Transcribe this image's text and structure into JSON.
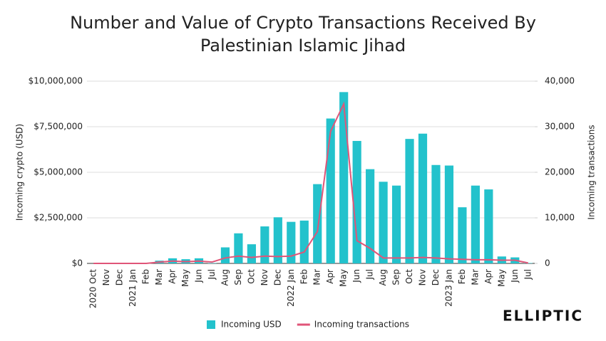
{
  "chart_data": {
    "type": "bar-line",
    "title": "Number and Value of Crypto Transactions Received By Palestinian Islamic Jihad",
    "y_label": "Incoming crypto (USD)",
    "y2_label": "Incoming transactions",
    "categories": [
      "2020 Oct",
      "Nov",
      "Dec",
      "2021 Jan",
      "Feb",
      "Mar",
      "Apr",
      "May",
      "Jun",
      "Jul",
      "Aug",
      "Sep",
      "Oct",
      "Nov",
      "Dec",
      "2022 Jan",
      "Feb",
      "Mar",
      "Apr",
      "May",
      "Jun",
      "Jul",
      "Aug",
      "Sep",
      "Oct",
      "Nov",
      "Dec",
      "2023 Jan",
      "Feb",
      "Mar",
      "Apr",
      "May",
      "Jun",
      "Jul"
    ],
    "series": [
      {
        "name": "Incoming USD",
        "type": "bar",
        "color": "#23c2cc",
        "values": [
          0,
          0,
          0,
          0,
          0,
          150000,
          280000,
          230000,
          280000,
          20000,
          880000,
          1650000,
          1050000,
          2030000,
          2530000,
          2280000,
          2350000,
          4350000,
          7950000,
          9400000,
          6720000,
          5170000,
          4480000,
          4270000,
          6830000,
          7120000,
          5400000,
          5370000,
          3080000,
          4270000,
          4060000,
          380000,
          330000,
          20000
        ]
      },
      {
        "name": "Incoming transactions",
        "type": "line",
        "axis": "y2",
        "color": "#e05578",
        "values": [
          0,
          0,
          0,
          0,
          0,
          300,
          500,
          400,
          500,
          300,
          1200,
          1600,
          1300,
          1600,
          1500,
          1600,
          2500,
          7000,
          29000,
          35000,
          5000,
          3300,
          1200,
          1200,
          1200,
          1300,
          1200,
          1000,
          900,
          800,
          800,
          700,
          700,
          100
        ]
      }
    ],
    "ylim": [
      0,
      10000000
    ],
    "yticks": [
      {
        "value": 0,
        "label": "$0"
      },
      {
        "value": 2500000,
        "label": "$2,500,000"
      },
      {
        "value": 5000000,
        "label": "$5,000,000"
      },
      {
        "value": 7500000,
        "label": "$7,500,000"
      },
      {
        "value": 10000000,
        "label": "$10,000,000"
      }
    ],
    "y2lim": [
      0,
      40000
    ],
    "y2ticks": [
      0,
      {
        "value": 10000,
        "label": "10,000"
      },
      {
        "value": 20000,
        "label": "20,000"
      },
      {
        "value": 30000,
        "label": "30,000"
      },
      {
        "value": 40000,
        "label": "40,000"
      }
    ],
    "grid": true,
    "legend": "bottom",
    "logo": "ELLIPTIC"
  }
}
